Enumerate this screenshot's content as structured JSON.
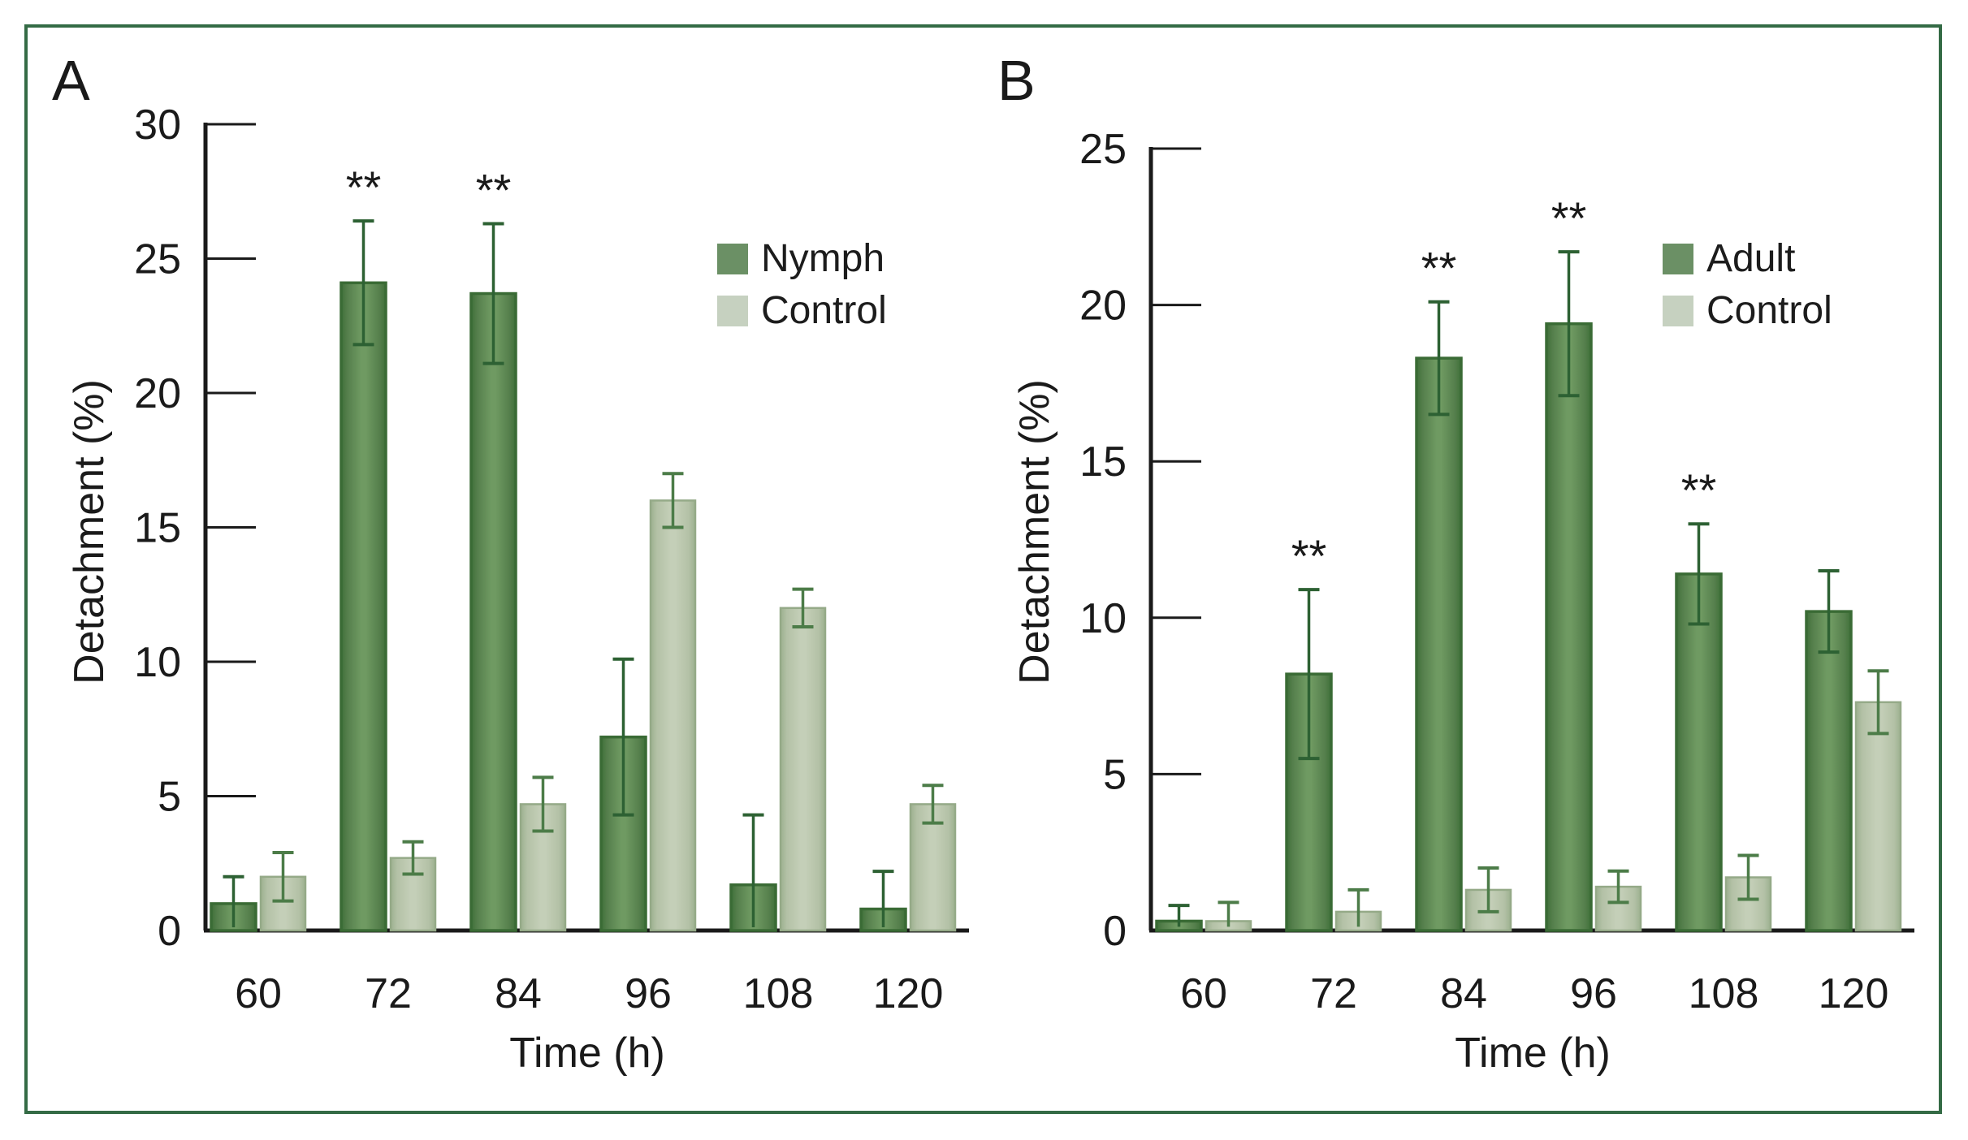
{
  "figure": {
    "frame_color": "#346b45",
    "background": "#ffffff",
    "panels": [
      {
        "letter": "A"
      },
      {
        "letter": "B"
      }
    ],
    "colors": {
      "dark_fill_edge": "#3f7039",
      "dark_fill_mid": "#557f4c",
      "dark_fill_center": "#6f9a62",
      "dark_stroke": "#3a6b35",
      "dark_legend": "#6b9065",
      "light_fill_edge": "#9cb08f",
      "light_fill_mid": "#b3c1a6",
      "light_fill_center": "#c4cfb8",
      "light_stroke": "#95aa88",
      "light_legend": "#c6d1c0",
      "error_dark": "#2d6133",
      "error_light": "#4c7c48",
      "axis": "#1a1a1a",
      "significance": "#111111"
    }
  },
  "chart_data": [
    {
      "type": "bar",
      "panel": "A",
      "title": "",
      "categories": [
        "60",
        "72",
        "84",
        "96",
        "108",
        "120"
      ],
      "xlabel": "Time (h)",
      "ylabel": "Detachment (%)",
      "ylim": [
        0,
        30
      ],
      "yticks": [
        0,
        5,
        10,
        15,
        20,
        25,
        30
      ],
      "grid": false,
      "legend_position": "upper right",
      "series": [
        {
          "name": "Nymph",
          "swatch": "dark",
          "values": [
            1.0,
            24.1,
            23.7,
            7.2,
            1.7,
            0.8
          ],
          "errors": [
            1.0,
            2.3,
            2.6,
            2.9,
            2.6,
            1.4
          ]
        },
        {
          "name": "Control",
          "swatch": "light",
          "values": [
            2.0,
            2.7,
            4.7,
            16.0,
            12.0,
            4.7
          ],
          "errors": [
            0.9,
            0.6,
            1.0,
            1.0,
            0.7,
            0.7
          ]
        }
      ],
      "significance_marks": {
        "symbol": "**",
        "on_series": "Nymph",
        "categories": [
          "72",
          "84"
        ]
      }
    },
    {
      "type": "bar",
      "panel": "B",
      "title": "",
      "categories": [
        "60",
        "72",
        "84",
        "96",
        "108",
        "120"
      ],
      "xlabel": "Time (h)",
      "ylabel": "Detachment (%)",
      "ylim": [
        0,
        25
      ],
      "yticks": [
        0,
        5,
        10,
        15,
        20,
        25
      ],
      "grid": false,
      "legend_position": "upper right",
      "series": [
        {
          "name": "Adult",
          "swatch": "dark",
          "values": [
            0.3,
            8.2,
            18.3,
            19.4,
            11.4,
            10.2
          ],
          "errors": [
            0.5,
            2.7,
            1.8,
            2.3,
            1.6,
            1.3
          ]
        },
        {
          "name": "Control",
          "swatch": "light",
          "values": [
            0.3,
            0.6,
            1.3,
            1.4,
            1.7,
            7.3
          ],
          "errors": [
            0.6,
            0.7,
            0.7,
            0.5,
            0.7,
            1.0
          ]
        }
      ],
      "significance_marks": {
        "symbol": "**",
        "on_series": "Adult",
        "categories": [
          "72",
          "84",
          "96",
          "108"
        ]
      }
    }
  ]
}
